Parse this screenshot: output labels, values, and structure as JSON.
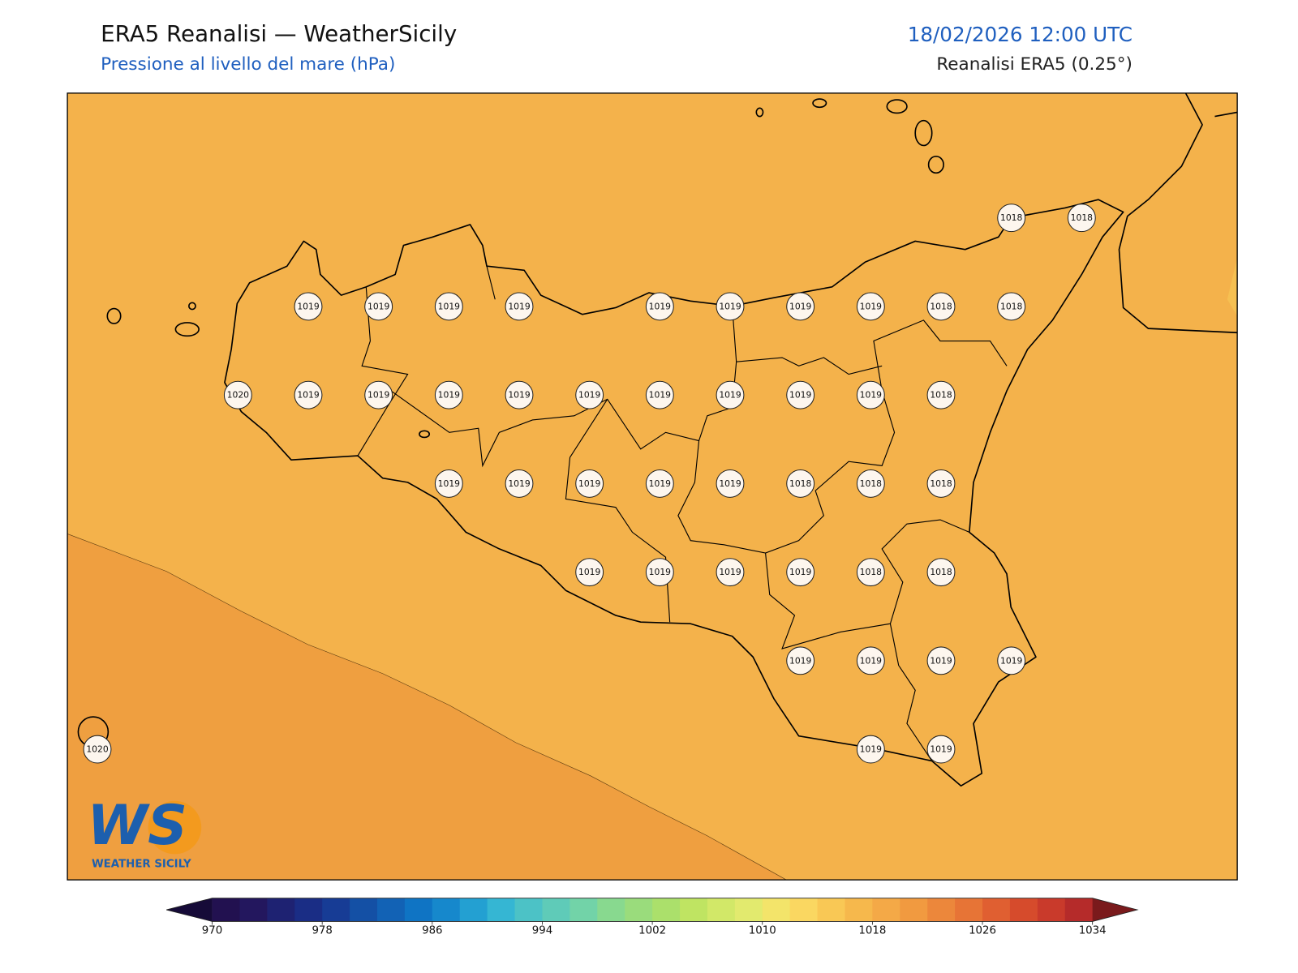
{
  "header": {
    "title": "ERA5 Reanalisi — WeatherSicily",
    "subtitle": "Pressione al livello del mare (hPa)",
    "datetime": "18/02/2026 12:00 UTC",
    "source": "Reanalisi ERA5 (0.25°)"
  },
  "markers": {
    "rows": [
      [
        null,
        null,
        null,
        null,
        null,
        null,
        null,
        null,
        null,
        null,
        null,
        null,
        null,
        1018,
        1018
      ],
      [
        null,
        null,
        null,
        1019,
        1019,
        1019,
        1019,
        null,
        1019,
        1019,
        1019,
        1019,
        1018,
        1018,
        null
      ],
      [
        null,
        null,
        1020,
        1019,
        1019,
        1019,
        1019,
        1019,
        1019,
        1019,
        1019,
        1019,
        1018,
        null,
        null
      ],
      [
        null,
        null,
        null,
        null,
        null,
        1019,
        1019,
        1019,
        1019,
        1019,
        1018,
        1018,
        1018,
        null,
        null
      ],
      [
        null,
        null,
        null,
        null,
        null,
        null,
        null,
        1019,
        1019,
        1019,
        1019,
        1018,
        1018,
        null,
        null
      ],
      [
        null,
        null,
        null,
        null,
        null,
        null,
        null,
        null,
        null,
        null,
        1019,
        1019,
        1019,
        1019,
        null
      ],
      [
        1020,
        null,
        null,
        null,
        null,
        null,
        null,
        null,
        null,
        null,
        null,
        1019,
        1019,
        null,
        null
      ]
    ]
  },
  "colorbar": {
    "range": [
      970,
      1034
    ],
    "ticks": [
      970,
      978,
      986,
      994,
      1002,
      1010,
      1018,
      1026,
      1034
    ],
    "colors": [
      "#221150",
      "#23175e",
      "#1e2272",
      "#1a2d85",
      "#173c95",
      "#1450a5",
      "#1262b5",
      "#0f74c4",
      "#1688cc",
      "#23a0d2",
      "#35b6d3",
      "#4cc2c6",
      "#5fcbb8",
      "#72d3a8",
      "#88d98f",
      "#9adc7c",
      "#abe06b",
      "#bfe462",
      "#d2e868",
      "#e2ea6e",
      "#f3e46a",
      "#fad761",
      "#f9c855",
      "#f6b84c",
      "#f4a947",
      "#f19a40",
      "#ec873b",
      "#e77436",
      "#e05f31",
      "#d64b2c",
      "#c93a2b",
      "#b52b2a"
    ],
    "under_color": "#160b38",
    "over_color": "#7a1a1c"
  },
  "logo": {
    "letters": "WS",
    "text": "WEATHER SICILY"
  }
}
